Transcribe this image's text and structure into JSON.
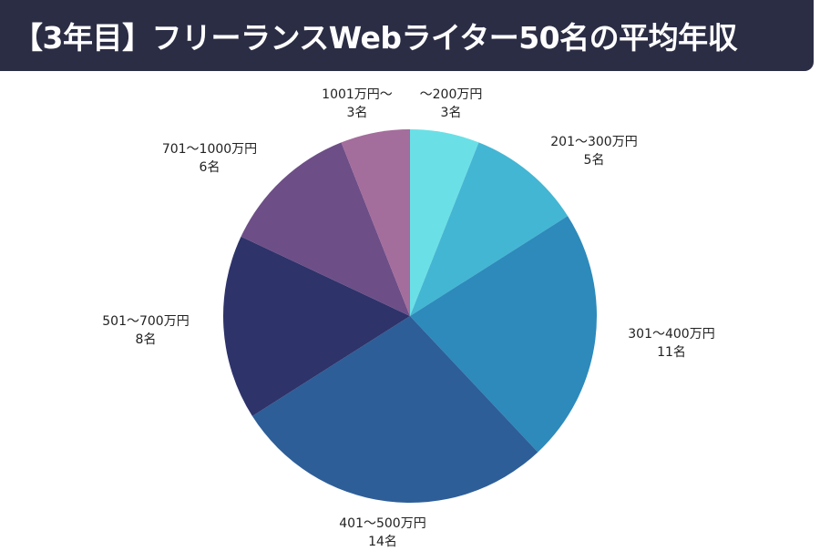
{
  "header": {
    "title": "【3年目】フリーランスWebライター50名の平均年収"
  },
  "colors": {
    "title_bar": "#2b2d45",
    "title_text": "#ffffff"
  },
  "chart_data": {
    "type": "pie",
    "title": "【3年目】フリーランスWebライター50名の平均年収",
    "total": 50,
    "unit": "名",
    "start_angle": "12 o'clock, clockwise",
    "categories": [
      "～200万円",
      "201～300万円",
      "301～400万円",
      "401～500万円",
      "501～700万円",
      "701～1000万円",
      "1001万円～"
    ],
    "values": [
      3,
      5,
      11,
      14,
      8,
      6,
      3
    ],
    "colors": [
      "#6ae0e6",
      "#43b6d3",
      "#2d8abb",
      "#2d5e98",
      "#2e336a",
      "#6d4e87",
      "#a36d9c"
    ],
    "slices": [
      {
        "label": "～200万円",
        "count_label": "3名",
        "value": 3,
        "color": "#6ae0e6"
      },
      {
        "label": "201～300万円",
        "count_label": "5名",
        "value": 5,
        "color": "#43b6d3"
      },
      {
        "label": "301～400万円",
        "count_label": "11名",
        "value": 11,
        "color": "#2d8abb"
      },
      {
        "label": "401～500万円",
        "count_label": "14名",
        "value": 14,
        "color": "#2d5e98"
      },
      {
        "label": "501～700万円",
        "count_label": "8名",
        "value": 8,
        "color": "#2e336a"
      },
      {
        "label": "701～1000万円",
        "count_label": "6名",
        "value": 6,
        "color": "#6d4e87"
      },
      {
        "label": "1001万円～",
        "count_label": "3名",
        "value": 3,
        "color": "#a36d9c"
      }
    ],
    "legend": "none (labels placed outside slices)"
  }
}
